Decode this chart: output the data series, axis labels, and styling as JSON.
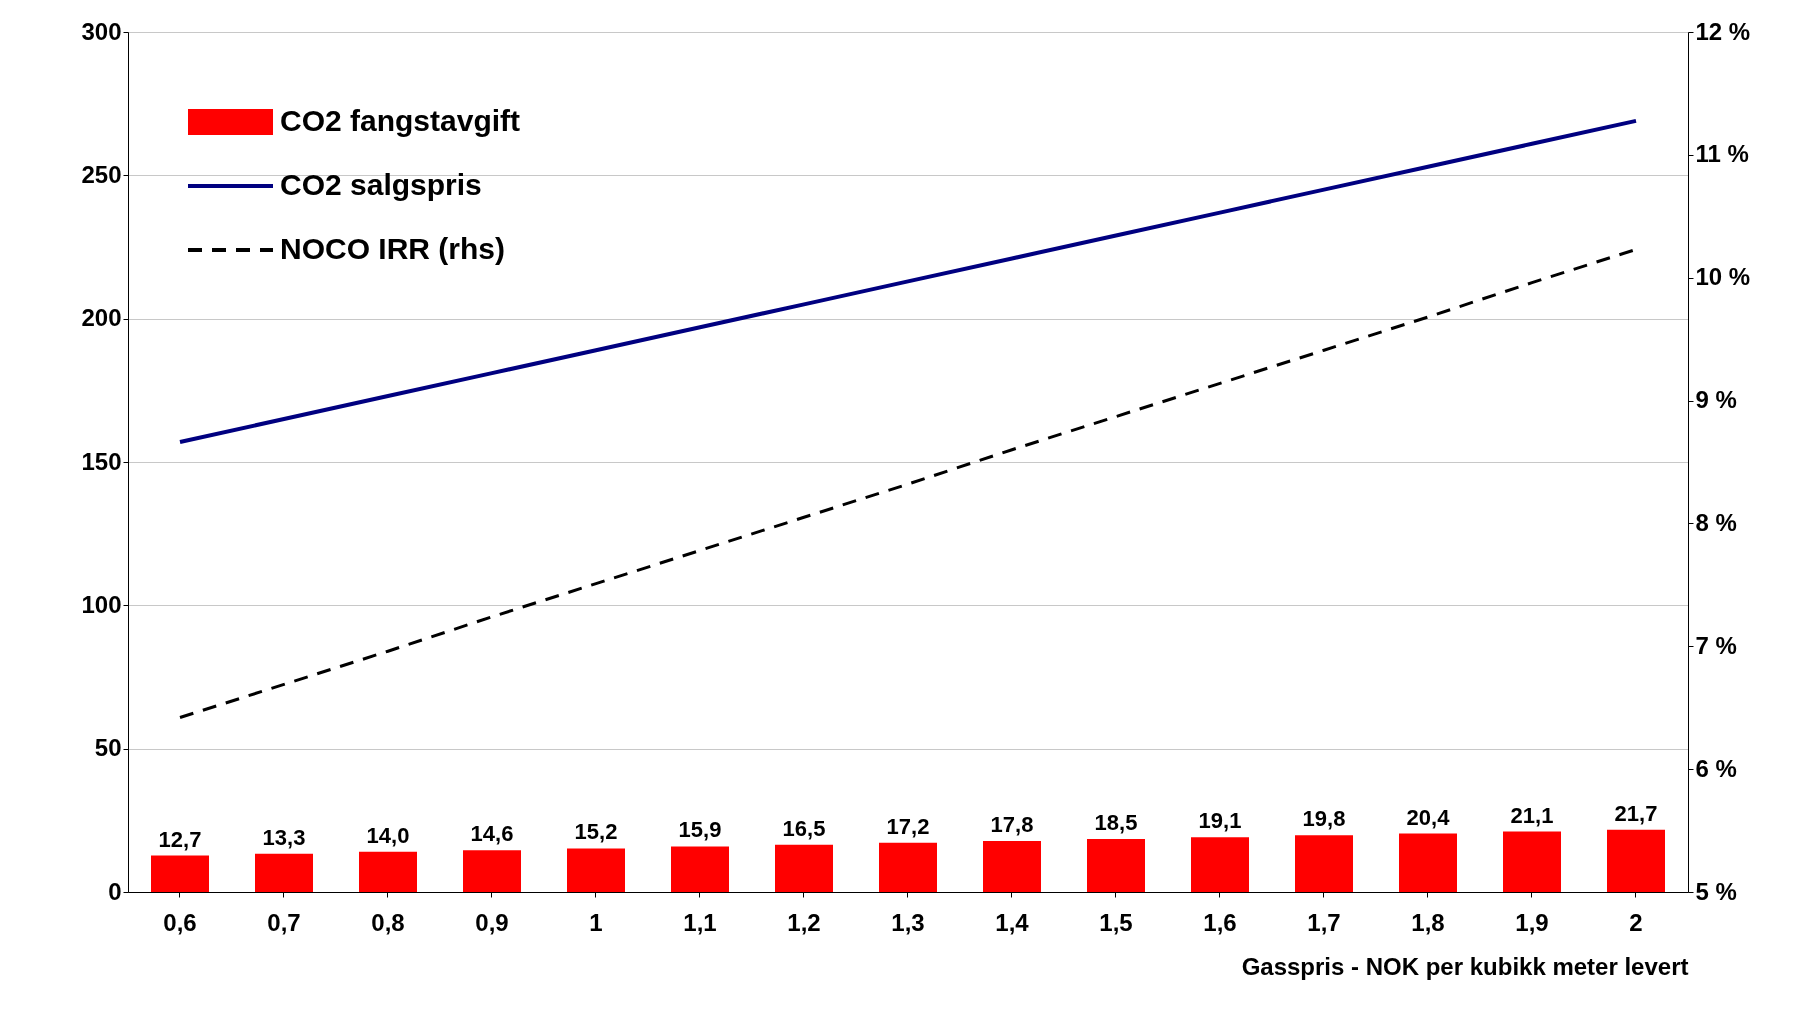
{
  "chart_data": {
    "type": "bar",
    "xlabel": "Gasspris - NOK per kubikk meter levert",
    "categories": [
      "0,6",
      "0,7",
      "0,8",
      "0,9",
      "1",
      "1,1",
      "1,2",
      "1,3",
      "1,4",
      "1,5",
      "1,6",
      "1,7",
      "1,8",
      "1,9",
      "2"
    ],
    "series": [
      {
        "name": "CO2 fangstavgift",
        "color": "#ff0000",
        "values": [
          12.7,
          13.3,
          14.0,
          14.6,
          15.2,
          15.9,
          16.5,
          17.2,
          17.8,
          18.5,
          19.1,
          19.8,
          20.4,
          21.1,
          21.7
        ],
        "value_labels": [
          "12,7",
          "13,3",
          "14,0",
          "14,6",
          "15,2",
          "15,9",
          "16,5",
          "17,2",
          "17,8",
          "18,5",
          "19,1",
          "19,8",
          "20,4",
          "21,1",
          "21,7"
        ]
      },
      {
        "name": "CO2 salgspris",
        "type": "line",
        "color": "#000080",
        "line_style": "solid",
        "values": [
          157,
          165,
          173,
          181,
          189,
          197,
          205,
          213,
          221,
          229,
          237,
          245,
          253,
          261,
          269
        ]
      },
      {
        "name": "NOCO IRR (rhs)",
        "type": "line",
        "axis": "y2",
        "color": "#000000",
        "line_style": "dashed",
        "values": [
          6.42,
          6.69,
          6.96,
          7.24,
          7.51,
          7.78,
          8.05,
          8.32,
          8.6,
          8.87,
          9.14,
          9.41,
          9.68,
          9.96,
          10.23
        ]
      }
    ],
    "ylim": [
      0,
      300
    ],
    "yticks": [
      0,
      50,
      100,
      150,
      200,
      250,
      300
    ],
    "y2lim": [
      5,
      12
    ],
    "y2ticks": [
      {
        "value": 5,
        "label": "5 %"
      },
      {
        "value": 6,
        "label": "6 %"
      },
      {
        "value": 7,
        "label": "7 %"
      },
      {
        "value": 8,
        "label": "8 %"
      },
      {
        "value": 9,
        "label": "9 %"
      },
      {
        "value": 10,
        "label": "10 %"
      },
      {
        "value": 11,
        "label": "11 %"
      },
      {
        "value": 12,
        "label": "12 %"
      }
    ],
    "grid": "y",
    "legend": "top left"
  }
}
